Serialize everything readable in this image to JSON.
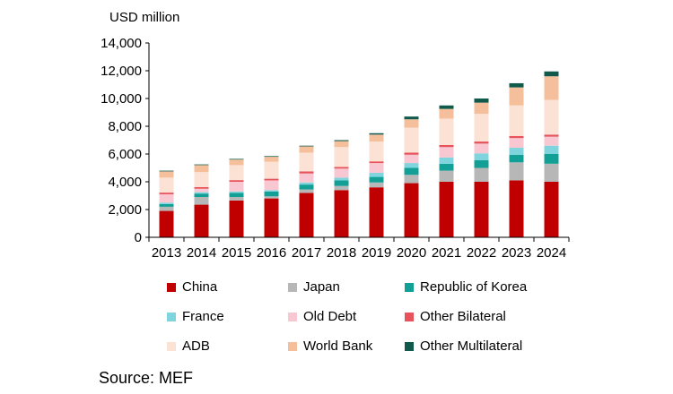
{
  "source": "Source: MEF",
  "chart_data": {
    "type": "bar",
    "stacked": true,
    "ylabel": "USD million",
    "ylim": [
      0,
      14000
    ],
    "yticks": [
      0,
      2000,
      4000,
      6000,
      8000,
      10000,
      12000,
      14000
    ],
    "ytick_labels": [
      "0",
      "2,000",
      "4,000",
      "6,000",
      "8,000",
      "10,000",
      "12,000",
      "14,000"
    ],
    "categories": [
      "2013",
      "2014",
      "2015",
      "2016",
      "2017",
      "2018",
      "2019",
      "2020",
      "2021",
      "2022",
      "2023",
      "2024"
    ],
    "legend_position": "bottom",
    "series": [
      {
        "name": "China",
        "color": "#c00000",
        "values": [
          1900,
          2350,
          2650,
          2800,
          3200,
          3400,
          3600,
          3900,
          4000,
          4000,
          4100,
          4000
        ]
      },
      {
        "name": "Japan",
        "color": "#b7b7b7",
        "values": [
          300,
          550,
          250,
          150,
          250,
          300,
          350,
          600,
          800,
          1000,
          1300,
          1300
        ]
      },
      {
        "name": "Republic of Korea",
        "color": "#12a096",
        "values": [
          200,
          250,
          300,
          350,
          350,
          400,
          400,
          500,
          500,
          550,
          550,
          700
        ]
      },
      {
        "name": "France",
        "color": "#7fd4de",
        "values": [
          100,
          100,
          100,
          100,
          150,
          200,
          300,
          350,
          450,
          500,
          500,
          600
        ]
      },
      {
        "name": "Old Debt",
        "color": "#f8c7d2",
        "values": [
          600,
          250,
          700,
          700,
          650,
          650,
          700,
          600,
          750,
          700,
          700,
          650
        ]
      },
      {
        "name": "Other Bilateral",
        "color": "#e8525a",
        "values": [
          120,
          120,
          120,
          120,
          150,
          120,
          120,
          150,
          150,
          150,
          150,
          150
        ]
      },
      {
        "name": "ADB",
        "color": "#fbe2d4",
        "values": [
          1080,
          1080,
          1080,
          1230,
          1350,
          1430,
          1430,
          1800,
          1900,
          2000,
          2200,
          2500
        ]
      },
      {
        "name": "World Bank",
        "color": "#f6bf9c",
        "values": [
          450,
          500,
          400,
          350,
          450,
          430,
          500,
          600,
          700,
          800,
          1300,
          1700
        ]
      },
      {
        "name": "Other Multilateral",
        "color": "#0f5a4b",
        "values": [
          50,
          50,
          50,
          50,
          50,
          70,
          100,
          200,
          250,
          300,
          300,
          350
        ]
      }
    ]
  }
}
